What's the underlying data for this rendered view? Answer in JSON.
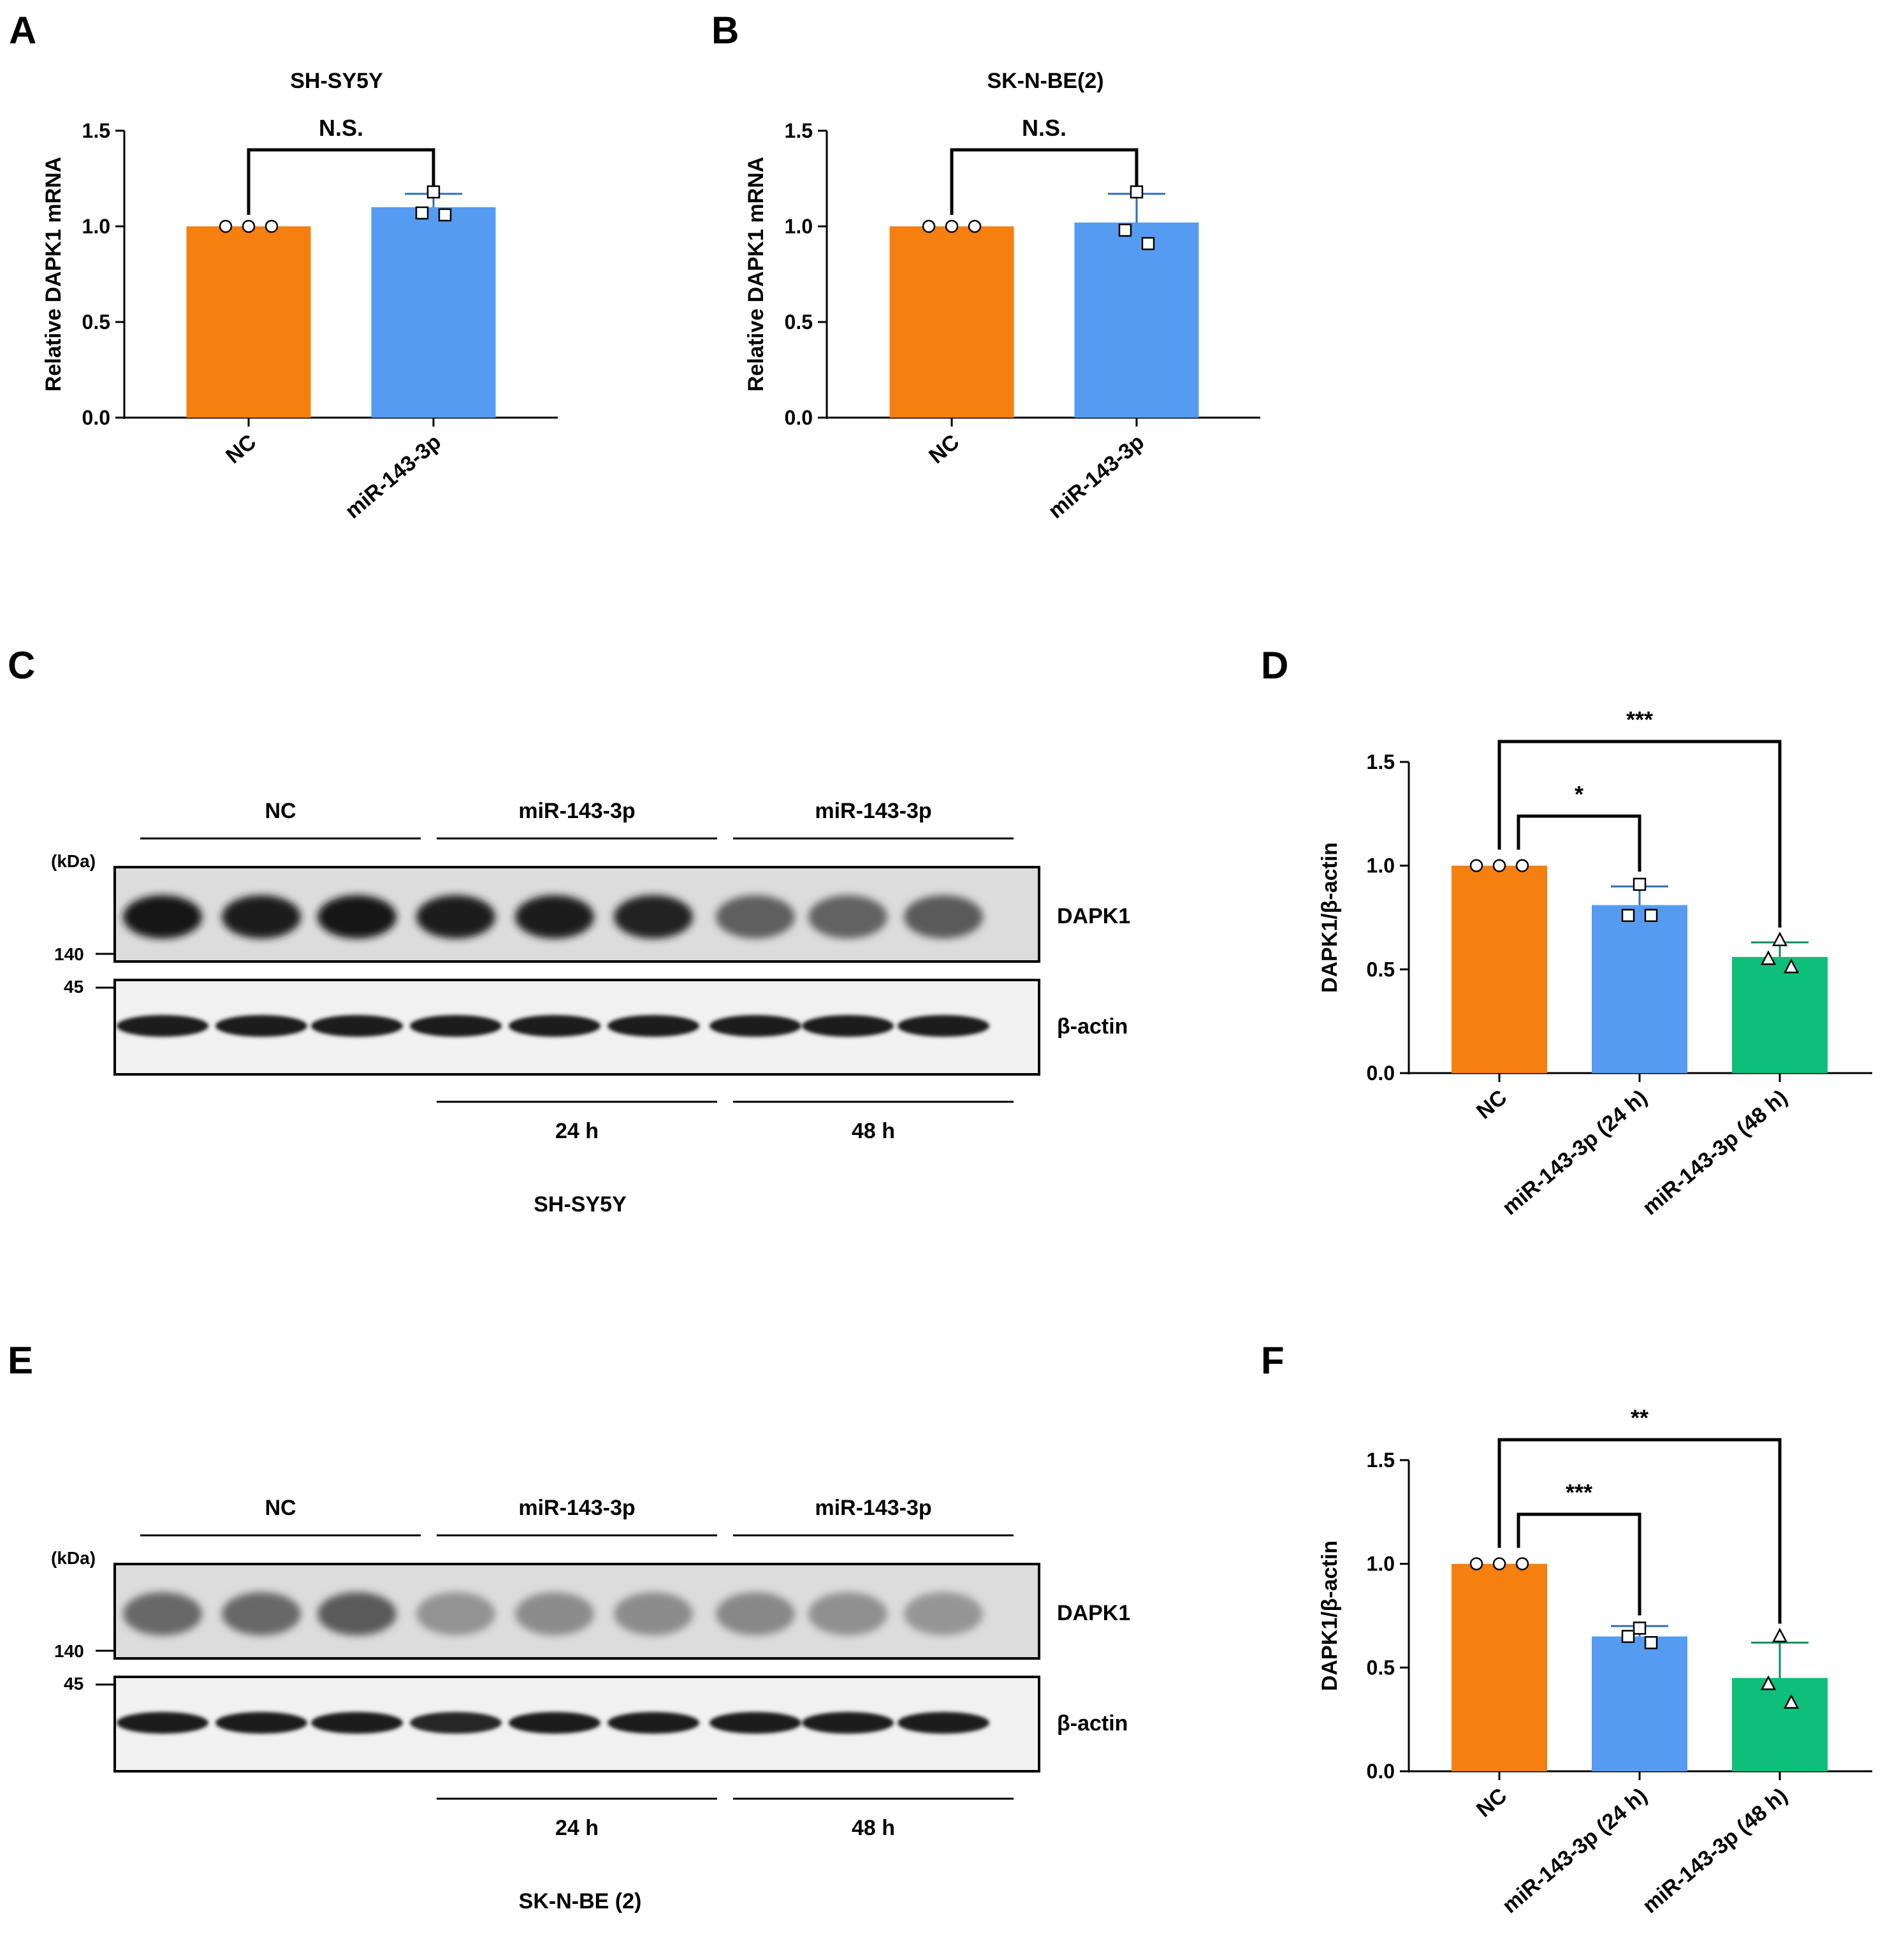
{
  "colors": {
    "orange": "#F57F0F",
    "blue": "#559BF2",
    "green": "#0DBF79",
    "nc_err": "#F57F0F",
    "blue_err": "#2F6FB8",
    "green_err": "#0B8F5A"
  },
  "panels": {
    "A": "A",
    "B": "B",
    "C": "C",
    "D": "D",
    "E": "E",
    "F": "F"
  },
  "chart_data": [
    {
      "id": "A",
      "type": "bar",
      "title": "SH-SY5Y",
      "ylabel": "Relative DAPK1 mRNA",
      "xlabel": "",
      "ylim": [
        0,
        1.5
      ],
      "yticks": [
        "0.0",
        "0.5",
        "1.0",
        "1.5"
      ],
      "categories": [
        "NC",
        "miR-143-3p"
      ],
      "values": [
        1.0,
        1.1
      ],
      "errors": [
        0.0,
        0.07
      ],
      "points": [
        [
          1.0,
          1.0,
          1.0
        ],
        [
          1.18,
          1.07,
          1.06
        ]
      ],
      "markers": [
        "circle",
        "square"
      ],
      "significance": [
        {
          "from": 0,
          "to": 1,
          "label": "N.S."
        }
      ]
    },
    {
      "id": "B",
      "type": "bar",
      "title": "SK-N-BE(2)",
      "ylabel": "Relative DAPK1 mRNA",
      "xlabel": "",
      "ylim": [
        0,
        1.5
      ],
      "yticks": [
        "0.0",
        "0.5",
        "1.0",
        "1.5"
      ],
      "categories": [
        "NC",
        "miR-143-3p"
      ],
      "values": [
        1.0,
        1.02
      ],
      "errors": [
        0.0,
        0.15
      ],
      "points": [
        [
          1.0,
          1.0,
          1.0
        ],
        [
          1.18,
          0.98,
          0.91
        ]
      ],
      "markers": [
        "circle",
        "square"
      ],
      "significance": [
        {
          "from": 0,
          "to": 1,
          "label": "N.S."
        }
      ]
    },
    {
      "id": "D",
      "type": "bar",
      "title": "",
      "ylabel": "DAPK1/β-actin",
      "xlabel": "",
      "ylim": [
        0,
        1.5
      ],
      "yticks": [
        "0.0",
        "0.5",
        "1.0",
        "1.5"
      ],
      "categories": [
        "NC",
        "miR-143-3p (24 h)",
        "miR-143-3p (48 h)"
      ],
      "values": [
        1.0,
        0.81,
        0.56
      ],
      "errors": [
        0.0,
        0.09,
        0.07
      ],
      "points": [
        [
          1.0,
          1.0,
          1.0
        ],
        [
          0.91,
          0.76,
          0.76
        ],
        [
          0.64,
          0.51,
          0.55
        ]
      ],
      "markers": [
        "circle",
        "square",
        "triangle"
      ],
      "significance": [
        {
          "from": 0,
          "to": 1,
          "label": "*"
        },
        {
          "from": 0,
          "to": 2,
          "label": "***"
        }
      ]
    },
    {
      "id": "F",
      "type": "bar",
      "title": "",
      "ylabel": "DAPK1/β-actin",
      "xlabel": "",
      "ylim": [
        0,
        1.5
      ],
      "yticks": [
        "0.0",
        "0.5",
        "1.0",
        "1.5"
      ],
      "categories": [
        "NC",
        "miR-143-3p (24 h)",
        "miR-143-3p (48 h)"
      ],
      "values": [
        1.0,
        0.65,
        0.45
      ],
      "errors": [
        0.0,
        0.05,
        0.17
      ],
      "points": [
        [
          1.0,
          1.0,
          1.0
        ],
        [
          0.69,
          0.62,
          0.65
        ],
        [
          0.65,
          0.42,
          0.33
        ]
      ],
      "markers": [
        "circle",
        "square",
        "triangle"
      ],
      "significance": [
        {
          "from": 0,
          "to": 1,
          "label": "***"
        },
        {
          "from": 0,
          "to": 2,
          "label": "**"
        }
      ]
    }
  ],
  "blots": [
    {
      "id": "C",
      "groups": [
        "NC",
        "miR-143-3p",
        "miR-143-3p"
      ],
      "timepoints": [
        "24 h",
        "48 h"
      ],
      "kda_label": "(kDa)",
      "markers": [
        "140",
        "45"
      ],
      "proteins": [
        "DAPK1",
        "β-actin"
      ],
      "cell_line": "SH-SY5Y",
      "dapk1_intensity": [
        0.95,
        0.9,
        0.95,
        0.92,
        0.92,
        0.88,
        0.6,
        0.58,
        0.62
      ],
      "actin_intensity": [
        0.95,
        0.95,
        0.95,
        0.95,
        0.95,
        0.95,
        0.93,
        0.95,
        0.93
      ]
    },
    {
      "id": "E",
      "groups": [
        "NC",
        "miR-143-3p",
        "miR-143-3p"
      ],
      "timepoints": [
        "24 h",
        "48 h"
      ],
      "kda_label": "(kDa)",
      "markers": [
        "140",
        "45"
      ],
      "proteins": [
        "DAPK1",
        "β-actin"
      ],
      "cell_line": "SK-N-BE (2)",
      "dapk1_intensity": [
        0.55,
        0.55,
        0.62,
        0.35,
        0.38,
        0.38,
        0.4,
        0.36,
        0.34
      ],
      "actin_intensity": [
        0.95,
        0.93,
        0.93,
        0.9,
        0.93,
        0.93,
        0.93,
        0.93,
        0.93
      ]
    }
  ]
}
